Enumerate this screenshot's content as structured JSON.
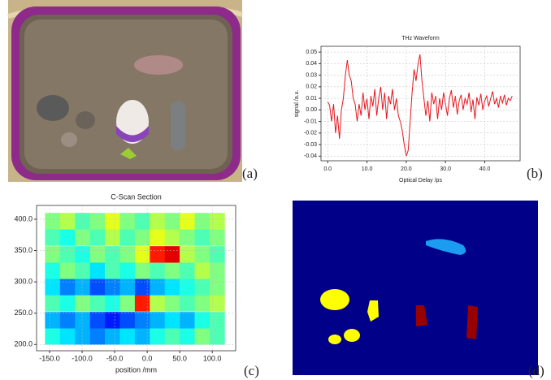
{
  "panel_labels": [
    "(a)",
    "(b)",
    "(c)",
    "(d)"
  ],
  "chart_data": [
    {
      "type": "line",
      "title": "THz Waveform",
      "x_label": "Optical Delay /ps",
      "y_label": "signal /a.u.",
      "color": "#e8141c",
      "grid": true,
      "x": [
        0,
        0.5,
        1,
        1.5,
        2,
        2.5,
        3,
        3.5,
        4,
        4.5,
        5,
        5.5,
        6,
        6.5,
        7,
        7.5,
        8,
        8.5,
        9,
        9.5,
        10,
        10.5,
        11,
        11.5,
        12,
        12.5,
        13,
        13.5,
        14,
        14.5,
        15,
        15.5,
        16,
        16.5,
        17,
        17.5,
        18,
        18.5,
        19,
        19.5,
        20,
        20.5,
        21,
        21.5,
        22,
        22.5,
        23,
        23.5,
        24,
        24.5,
        25,
        25.5,
        26,
        26.5,
        27,
        27.5,
        28,
        28.5,
        29,
        29.5,
        30,
        30.5,
        31,
        31.5,
        32,
        32.5,
        33,
        33.5,
        34,
        34.5,
        35,
        35.5,
        36,
        36.5,
        37,
        37.5,
        38,
        38.5,
        39,
        39.5,
        40,
        40.5,
        41,
        41.5,
        42,
        42.5,
        43,
        43.5,
        44,
        44.5,
        45,
        45.5,
        46,
        46.5,
        47
      ],
      "values": [
        0.007,
        0.004,
        -0.01,
        0.005,
        -0.02,
        -0.005,
        -0.025,
        0.0,
        0.01,
        0.03,
        0.043,
        0.03,
        0.025,
        0.01,
        0.005,
        -0.01,
        0.005,
        -0.005,
        0.015,
        0.0,
        0.01,
        -0.008,
        0.012,
        0.003,
        0.018,
        -0.005,
        0.01,
        0.02,
        0.0,
        0.015,
        -0.008,
        0.012,
        0.005,
        0.018,
        0.0,
        0.01,
        -0.005,
        -0.01,
        -0.018,
        -0.03,
        -0.04,
        -0.035,
        -0.01,
        0.015,
        0.035,
        0.025,
        0.04,
        0.048,
        0.025,
        0.01,
        -0.005,
        0.008,
        -0.01,
        0.015,
        0.005,
        0.012,
        -0.008,
        0.01,
        0.0,
        0.015,
        0.005,
        -0.005,
        0.01,
        0.017,
        0.002,
        0.012,
        -0.004,
        0.008,
        0.013,
        0.0,
        0.01,
        0.005,
        0.015,
        -0.002,
        0.009,
        -0.008,
        0.011,
        0.004,
        0.014,
        0.0,
        0.008,
        0.012,
        0.003,
        0.01,
        0.016,
        0.005,
        0.01,
        0.002,
        0.012,
        0.006,
        0.013,
        0.004,
        0.01,
        0.008,
        0.012
      ],
      "xlim": [
        -1.7,
        49
      ],
      "ylim": [
        -0.044,
        0.055
      ],
      "xticks": [
        {
          "value": 0,
          "label": "0.0"
        },
        {
          "value": 10,
          "label": "10.0"
        },
        {
          "value": 20,
          "label": "20.0"
        },
        {
          "value": 30,
          "label": "30.0"
        },
        {
          "value": 40,
          "label": "40.0"
        }
      ],
      "yticks": [
        0.05,
        0.04,
        0.03,
        0.02,
        0.01,
        {
          "value": 0,
          "label": "0.00"
        },
        -0.01,
        -0.02,
        -0.03,
        -0.04
      ]
    },
    {
      "type": "heatmap",
      "title": "C-Scan Section",
      "x_label": "position /mm",
      "colormap": "jet",
      "grid": true,
      "x": [
        -145.5,
        -122.5,
        -99.5,
        -76.5,
        -53.5,
        -30.5,
        -7.5,
        15.5,
        38.5,
        61.5,
        84.5,
        107.5
      ],
      "y": [
        213,
        239,
        266,
        292,
        318,
        344,
        371,
        397
      ],
      "z": [
        [
          0.4,
          0.35,
          0.3,
          0.25,
          0.3,
          0.35,
          0.3,
          0.4,
          0.45,
          0.4,
          0.5,
          0.45
        ],
        [
          0.3,
          0.25,
          0.3,
          0.2,
          0.15,
          0.2,
          0.25,
          0.3,
          0.35,
          0.3,
          0.4,
          0.45
        ],
        [
          0.45,
          0.4,
          0.5,
          0.45,
          0.4,
          0.5,
          0.85,
          0.55,
          0.5,
          0.45,
          0.5,
          0.55
        ],
        [
          0.35,
          0.25,
          0.3,
          0.2,
          0.25,
          0.3,
          0.2,
          0.3,
          0.35,
          0.4,
          0.45,
          0.5
        ],
        [
          0.4,
          0.5,
          0.45,
          0.35,
          0.45,
          0.4,
          0.5,
          0.45,
          0.5,
          0.45,
          0.55,
          0.5
        ],
        [
          0.5,
          0.45,
          0.4,
          0.5,
          0.45,
          0.5,
          0.6,
          0.85,
          0.9,
          0.55,
          0.5,
          0.45
        ],
        [
          0.45,
          0.4,
          0.5,
          0.45,
          0.55,
          0.45,
          0.5,
          0.6,
          0.55,
          0.5,
          0.45,
          0.5
        ],
        [
          0.5,
          0.55,
          0.45,
          0.5,
          0.6,
          0.5,
          0.45,
          0.55,
          0.5,
          0.6,
          0.5,
          0.55
        ]
      ],
      "xlim": [
        -170,
        136
      ],
      "ylim": [
        190,
        422
      ],
      "xticks": [
        {
          "value": -150,
          "label": "-150.0"
        },
        {
          "value": -100,
          "label": "-100.0"
        },
        {
          "value": -50,
          "label": "-50.0"
        },
        {
          "value": 0,
          "label": "0.0"
        },
        {
          "value": 50,
          "label": "50.0"
        },
        {
          "value": 100,
          "label": "100.0"
        }
      ],
      "yticks": [
        {
          "value": 200,
          "label": "200.0"
        },
        {
          "value": 250,
          "label": "250.0"
        },
        {
          "value": 300,
          "label": "300.0"
        },
        {
          "value": 350,
          "label": "350.0"
        },
        {
          "value": 400,
          "label": "400.0"
        }
      ]
    }
  ]
}
